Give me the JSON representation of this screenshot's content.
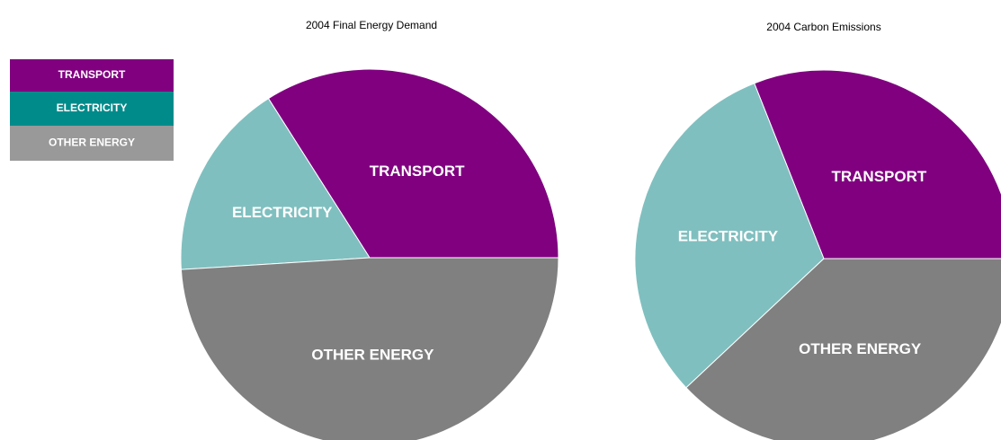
{
  "chart_data": [
    {
      "type": "pie",
      "title": "2004 Final Energy Demand",
      "categories": [
        "TRANSPORT",
        "ELECTRICITY",
        "OTHER ENERGY"
      ],
      "values": [
        34,
        17,
        49
      ],
      "colors": [
        "#800080",
        "#80bfbf",
        "#808080"
      ],
      "legend_colors": [
        "#800080",
        "#008b8b",
        "#999999"
      ]
    },
    {
      "type": "pie",
      "title": "2004 Carbon Emissions",
      "categories": [
        "TRANSPORT",
        "ELECTRICITY",
        "OTHER ENERGY"
      ],
      "values": [
        31,
        31,
        38
      ],
      "colors": [
        "#800080",
        "#80bfbf",
        "#808080"
      ]
    }
  ]
}
